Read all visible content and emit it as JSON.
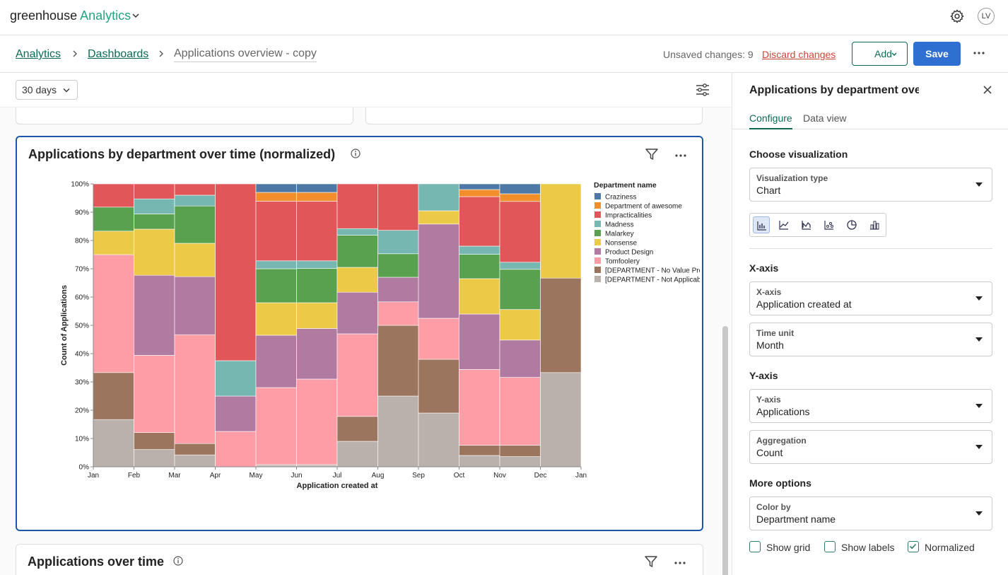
{
  "topbar": {
    "brand_main": "greenhouse",
    "brand_accent": "Analytics",
    "avatar_initials": "LV"
  },
  "breadcrumb": {
    "analytics": "Analytics",
    "dashboards": "Dashboards",
    "current": "Applications overview - copy"
  },
  "header_actions": {
    "unsaved": "Unsaved changes: 9",
    "discard": "Discard changes",
    "add": "Add",
    "save": "Save"
  },
  "filters": {
    "date_range": "30 days"
  },
  "cards": {
    "main_title": "Applications by department over time (normalized)",
    "second_title": "Applications over time"
  },
  "panel": {
    "title": "Applications by department over time (normalized)",
    "tabs": [
      "Configure",
      "Data view"
    ],
    "choose_visualization": "Choose visualization",
    "visualization_type": {
      "label": "Visualization type",
      "value": "Chart"
    },
    "xaxis_heading": "X-axis",
    "xaxis": {
      "label": "X-axis",
      "value": "Application created at"
    },
    "time_unit": {
      "label": "Time unit",
      "value": "Month"
    },
    "yaxis_heading": "Y-axis",
    "yaxis": {
      "label": "Y-axis",
      "value": "Applications"
    },
    "aggregation": {
      "label": "Aggregation",
      "value": "Count"
    },
    "more_options": "More options",
    "color_by": {
      "label": "Color by",
      "value": "Department name"
    },
    "options": [
      {
        "label": "Show grid",
        "checked": false
      },
      {
        "label": "Show labels",
        "checked": false
      },
      {
        "label": "Normalized",
        "checked": true
      }
    ]
  },
  "chart_data": {
    "type": "bar",
    "stacked": true,
    "normalized": true,
    "xlabel": "Application created at",
    "ylabel": "Count of Applications",
    "yticks": [
      "0%",
      "10%",
      "20%",
      "30%",
      "40%",
      "50%",
      "60%",
      "70%",
      "80%",
      "90%",
      "100%"
    ],
    "xticks": [
      "Jan",
      "Feb",
      "Mar",
      "Apr",
      "May",
      "Jun",
      "Jul",
      "Aug",
      "Sep",
      "Oct",
      "Nov",
      "Dec",
      "Jan"
    ],
    "legend_title": "Department name",
    "legend_position": "right",
    "categories": [
      "Jan",
      "Feb",
      "Mar",
      "Apr",
      "May",
      "Jun",
      "Jul",
      "Aug",
      "Sep",
      "Oct",
      "Nov",
      "Dec"
    ],
    "series": [
      {
        "name": "[DEPARTMENT - Not Applicable]",
        "color": "#bab0ac",
        "values": [
          16.7,
          6.1,
          4.2,
          0,
          0.5,
          0.5,
          9.0,
          25.0,
          19.0,
          4.0,
          3.6,
          33.3
        ]
      },
      {
        "name": "[DEPARTMENT - No Value Provi...",
        "color": "#9c755f",
        "values": [
          16.6,
          6.0,
          4.0,
          0,
          0.3,
          0.3,
          8.8,
          25.0,
          19.0,
          3.6,
          4.0,
          33.4
        ]
      },
      {
        "name": "Tomfoolery",
        "color": "#ff9da7",
        "values": [
          41.7,
          27.3,
          38.5,
          12.5,
          27.2,
          30.2,
          29.2,
          8.3,
          14.5,
          26.8,
          24.0,
          0
        ]
      },
      {
        "name": "Product Design",
        "color": "#b07aa1",
        "values": [
          0,
          28.3,
          20.5,
          12.5,
          18.5,
          17.9,
          14.7,
          8.7,
          33.3,
          19.6,
          13.2,
          0
        ]
      },
      {
        "name": "Nonsense",
        "color": "#edc948",
        "values": [
          8.3,
          16.3,
          11.8,
          0,
          11.5,
          9.1,
          8.8,
          0,
          4.7,
          12.5,
          10.8,
          33.3
        ]
      },
      {
        "name": "Malarkey",
        "color": "#59a14f",
        "values": [
          8.5,
          5.4,
          13.2,
          0,
          12.0,
          12.1,
          11.4,
          8.3,
          0,
          8.6,
          14.2,
          0
        ]
      },
      {
        "name": "Madness",
        "color": "#76b7b2",
        "values": [
          0,
          5.3,
          3.8,
          12.5,
          2.8,
          2.7,
          2.3,
          8.3,
          9.5,
          2.9,
          2.5,
          0
        ]
      },
      {
        "name": "Impracticalities",
        "color": "#e15759",
        "values": [
          8.2,
          5.3,
          4.0,
          62.5,
          21.1,
          21.1,
          15.8,
          16.4,
          0,
          17.5,
          21.5,
          0
        ]
      },
      {
        "name": "Department of awesome",
        "color": "#f28e2b",
        "values": [
          0,
          0,
          0,
          0,
          3.1,
          3.1,
          0,
          0,
          0,
          2.5,
          2.7,
          0
        ]
      },
      {
        "name": "Craziness",
        "color": "#4e79a7",
        "values": [
          0,
          0,
          0,
          0,
          3.0,
          3.0,
          0,
          0,
          0,
          2.0,
          3.5,
          0
        ]
      }
    ]
  }
}
